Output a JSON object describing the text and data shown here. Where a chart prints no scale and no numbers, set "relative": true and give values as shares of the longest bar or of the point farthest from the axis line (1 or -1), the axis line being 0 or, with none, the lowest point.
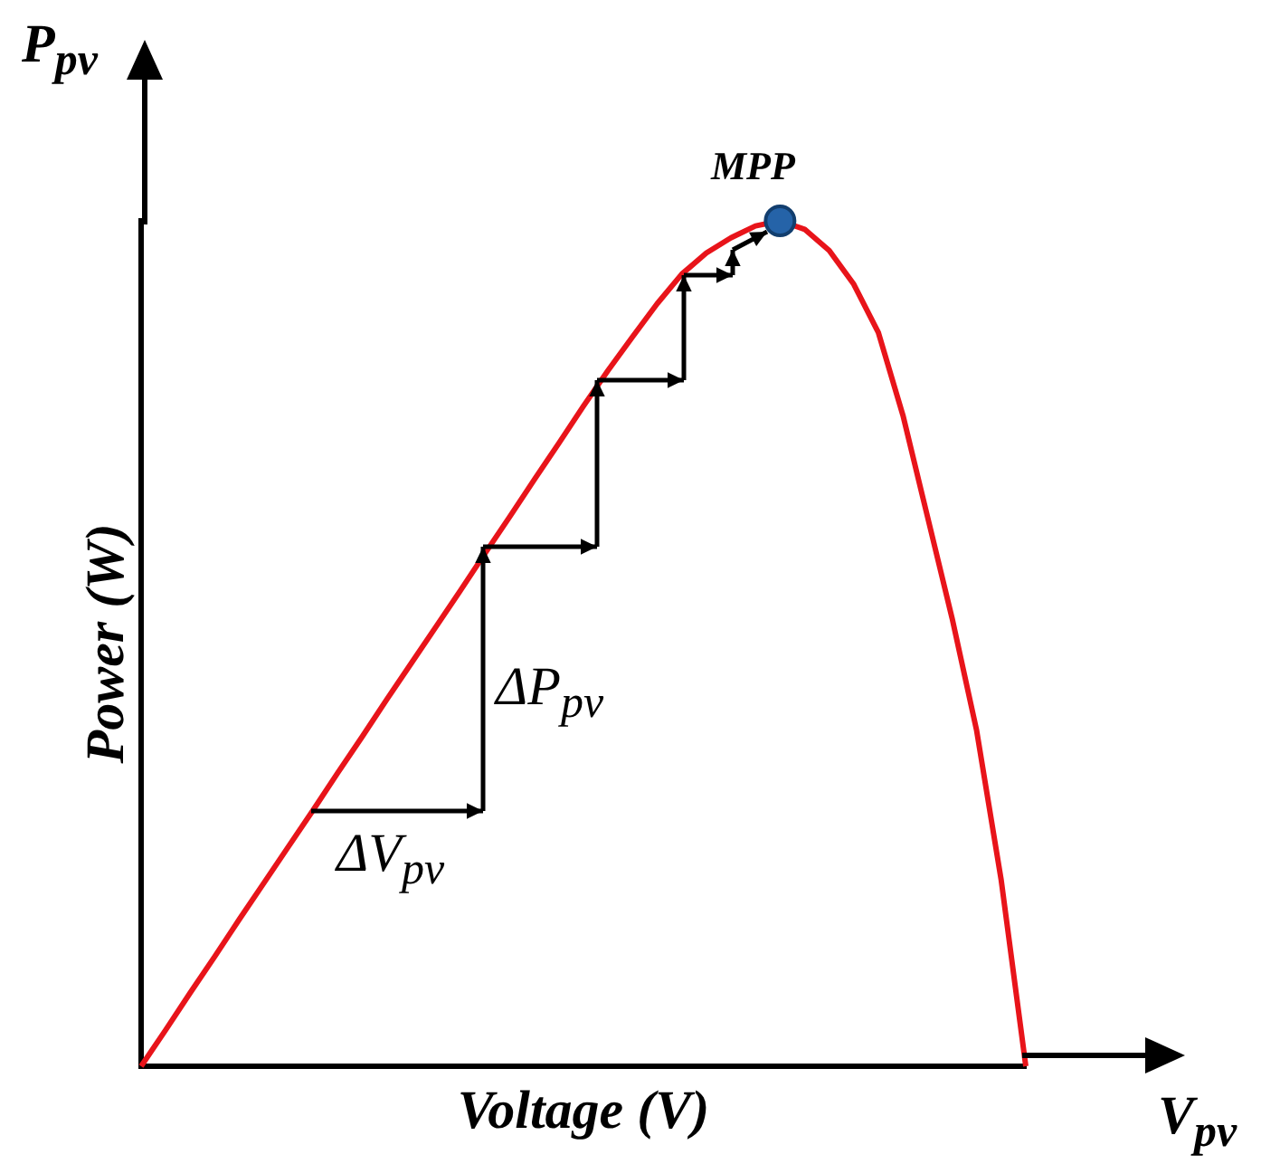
{
  "chart_data": {
    "type": "line",
    "relative": true,
    "xlabel": "Voltage (V)",
    "ylabel": "Power (W)",
    "legend": false,
    "grid": false,
    "categories": [
      null,
      null,
      null,
      null,
      null,
      null,
      null,
      null,
      null,
      null,
      null,
      null,
      null,
      null,
      null,
      null,
      null,
      null,
      null,
      null,
      null,
      null,
      null,
      null,
      null,
      null,
      null,
      null,
      null,
      null,
      null,
      null,
      null,
      null,
      null,
      null,
      null
    ],
    "series": [
      {
        "color": "#e8141a",
        "values": [
          0,
          0.043,
          0.087,
          0.13,
          0.174,
          0.217,
          0.26,
          0.303,
          0.347,
          0.39,
          0.434,
          0.477,
          0.52,
          0.563,
          0.607,
          0.65,
          0.694,
          0.737,
          0.781,
          0.823,
          0.863,
          0.902,
          0.937,
          0.962,
          0.98,
          0.994,
          1,
          0.99,
          0.965,
          0.925,
          0.868,
          0.77,
          0.65,
          0.53,
          0.397,
          0.22,
          0
        ]
      }
    ],
    "annotations": [
      "P$_{pv}$",
      "V$_{pv}$",
      "ΔV$_{pv}$",
      "ΔP$_{pv}$",
      "MPP"
    ]
  }
}
